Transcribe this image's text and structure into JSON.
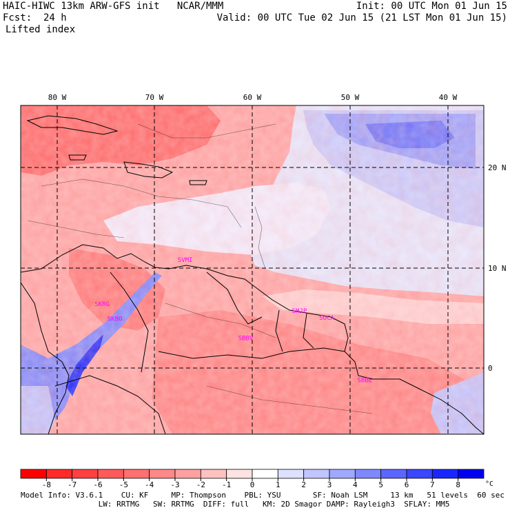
{
  "header": {
    "model_line": "HAIC-HIWC 13km ARW-GFS init   NCAR/MMM",
    "init_line": "Init: 00 UTC Mon 01 Jun 15",
    "fcst_line": "Fcst:  24 h",
    "valid_line": "Valid: 00 UTC Tue 02 Jun 15 (21 LST Mon 01 Jun 15)",
    "field_name": "Lifted index"
  },
  "map": {
    "lon_labels": [
      "80 W",
      "70 W",
      "60 W",
      "50 W",
      "40 W"
    ],
    "lat_labels": [
      "20 N",
      "10 N",
      "0"
    ],
    "stations": [
      {
        "name": "SKBO",
        "lon": -74.1,
        "lat": 4.7
      },
      {
        "name": "SVMI",
        "lon": -66.9,
        "lat": 10.6
      },
      {
        "name": "SKRG",
        "lon": -75.4,
        "lat": 6.2
      },
      {
        "name": "SBBV",
        "lon": -60.7,
        "lat": 2.8
      },
      {
        "name": "SMJP",
        "lon": -55.2,
        "lat": 5.5
      },
      {
        "name": "SOCA",
        "lon": -52.4,
        "lat": 4.8
      },
      {
        "name": "SBBE",
        "lon": -48.5,
        "lat": -1.4
      }
    ],
    "station_color": "#ff00ff",
    "coast_color": "#000000",
    "grid_color": "#000000"
  },
  "colorbar": {
    "unit": "°C",
    "ticks": [
      "-8",
      "-7",
      "-6",
      "-5",
      "-4",
      "-3",
      "-2",
      "-1",
      "0",
      "1",
      "2",
      "3",
      "4",
      "5",
      "6",
      "7",
      "8"
    ],
    "colors": [
      "#ff0000",
      "#ff2a2a",
      "#ff4040",
      "#ff5a5a",
      "#ff7070",
      "#ff8888",
      "#ffa0a0",
      "#ffc0c0",
      "#ffe2e2",
      "#ffffff",
      "#dde0ff",
      "#c0c4ff",
      "#a0a8ff",
      "#7e88ff",
      "#5c66ff",
      "#3a46ff",
      "#1a26ff",
      "#0000f0"
    ]
  },
  "footer": {
    "line1": "Model Info: V3.6.1    CU: KF     MP: Thompson    PBL: YSU       SF: Noah LSM     13 km   51 levels  60 sec",
    "line2": "                 LW: RRTMG   SW: RRTMG  DIFF: full   KM: 2D Smagor DAMP: Rayleigh3  SFLAY: MM5"
  }
}
